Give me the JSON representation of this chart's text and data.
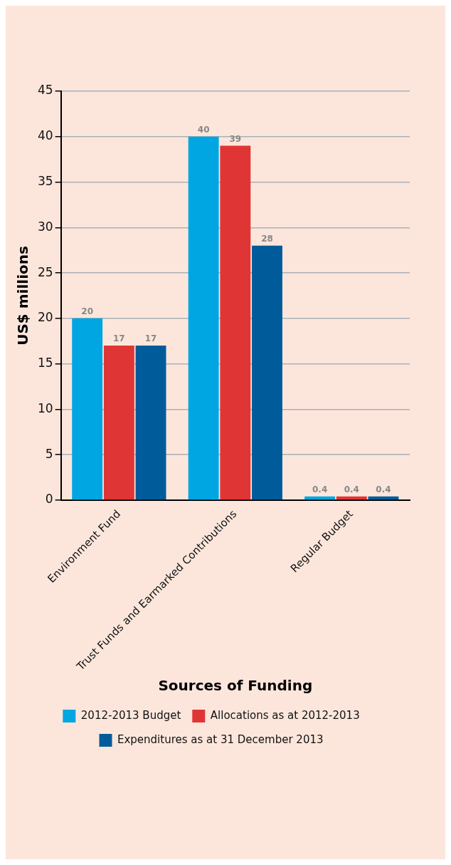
{
  "chart_data": {
    "type": "bar",
    "xlabel": "Sources of Funding",
    "ylabel": "US$ millions",
    "categories": [
      "Environment Fund",
      "Trust Funds and Earmarked Contributions",
      "Regular Budget"
    ],
    "series": [
      {
        "name": "2012-2013 Budget",
        "color": "#00a6e2",
        "values": [
          20,
          40,
          0.4
        ]
      },
      {
        "name": "Allocations as at 2012-2013",
        "color": "#e03535",
        "values": [
          17,
          39,
          0.4
        ]
      },
      {
        "name": "Expenditures as at 31 December 2013",
        "color": "#005b9a",
        "values": [
          17,
          28,
          0.4
        ]
      }
    ],
    "ylim": [
      0,
      45
    ],
    "yticks": [
      0,
      5,
      10,
      15,
      20,
      25,
      30,
      35,
      40,
      45
    ],
    "grid": "y",
    "legend": "bottom",
    "data_labels": true
  }
}
